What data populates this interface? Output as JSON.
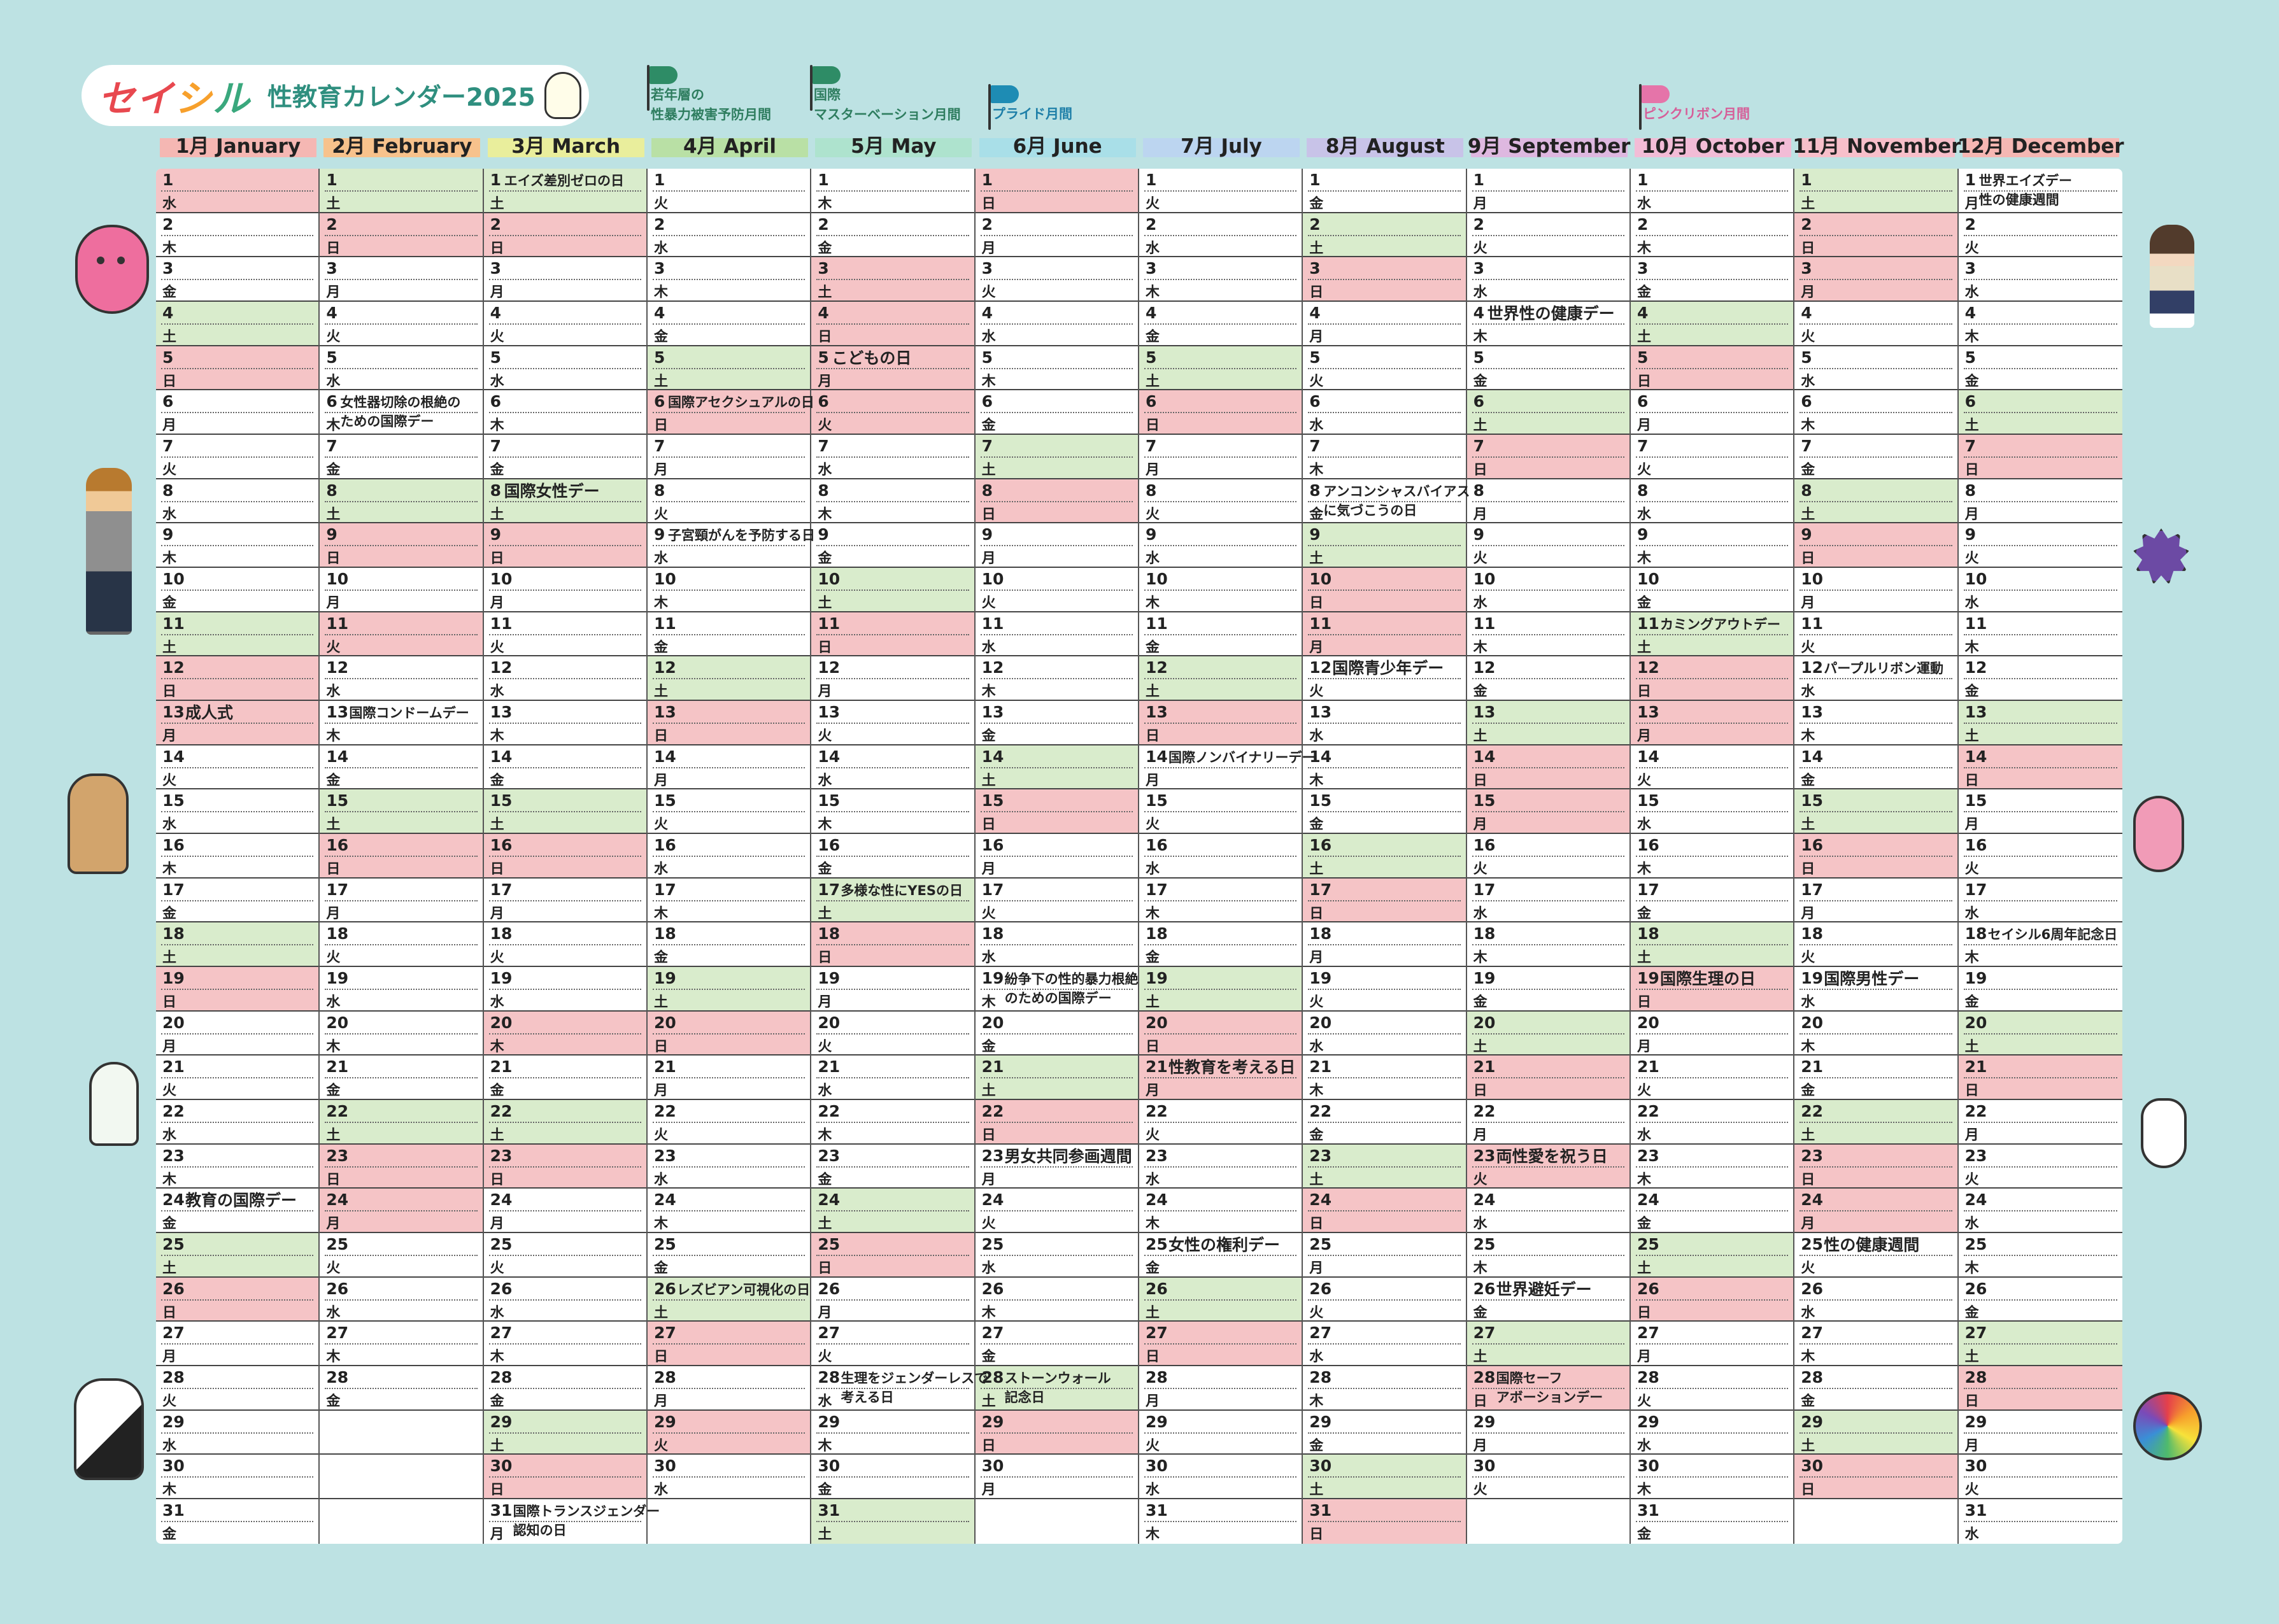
{
  "brand": {
    "logo_a": "セイ",
    "logo_b": "シ",
    "logo_c": "ル",
    "title": "性教育カレンダー2025"
  },
  "campaigns": [
    {
      "month": "4月",
      "label": "若年層の\n性暴力被害予防月間",
      "color": "#2e8c66"
    },
    {
      "month": "5月",
      "label": "国際\nマスターベーション月間",
      "color": "#2e8c66"
    },
    {
      "month": "6月",
      "label": "プライド月間",
      "color": "#1e8cb4"
    },
    {
      "month": "10月",
      "label": "ピンクリボン月間",
      "color": "#e574a9"
    }
  ],
  "months": [
    {
      "jp": "1月",
      "en": "January",
      "color": "#f5b7b3"
    },
    {
      "jp": "2月",
      "en": "February",
      "color": "#f7c28c"
    },
    {
      "jp": "3月",
      "en": "March",
      "color": "#e9ee9c"
    },
    {
      "jp": "4月",
      "en": "April",
      "color": "#b9e0a5"
    },
    {
      "jp": "5月",
      "en": "May",
      "color": "#aee3ce"
    },
    {
      "jp": "6月",
      "en": "June",
      "color": "#a9dfe8"
    },
    {
      "jp": "7月",
      "en": "July",
      "color": "#bcd5f0"
    },
    {
      "jp": "8月",
      "en": "August",
      "color": "#c8c3e8"
    },
    {
      "jp": "9月",
      "en": "September",
      "color": "#deb8e0"
    },
    {
      "jp": "10月",
      "en": "October",
      "color": "#f2bcd6"
    },
    {
      "jp": "11月",
      "en": "November",
      "color": "#f7bfca"
    },
    {
      "jp": "12月",
      "en": "December",
      "color": "#f5b7b3"
    }
  ],
  "weekdays": [
    "日",
    "月",
    "火",
    "水",
    "木",
    "金",
    "土"
  ],
  "holidays": {
    "1": [
      1,
      13
    ],
    "2": [
      11,
      23,
      24
    ],
    "3": [
      20
    ],
    "4": [
      29
    ],
    "5": [
      3,
      4,
      5,
      6
    ],
    "6": [],
    "7": [
      21
    ],
    "8": [
      11
    ],
    "9": [
      15,
      23
    ],
    "10": [
      13
    ],
    "11": [
      3,
      23,
      24
    ],
    "12": []
  },
  "events": {
    "1": {
      "13": "成人式",
      "24": "教育の国際デー"
    },
    "2": {
      "6": "女性器切除の根絶の\nための国際デー",
      "13": "国際コンドームデー"
    },
    "3": {
      "1": "エイズ差別ゼロの日",
      "8": "国際女性デー",
      "31": "国際トランスジェンダー\n認知の日"
    },
    "4": {
      "6": "国際アセクシュアルの日",
      "9": "子宮頸がんを予防する日",
      "26": "レズビアン可視化の日"
    },
    "5": {
      "5": "こどもの日",
      "17": "多様な性にYESの日",
      "28": "生理をジェンダーレスで\n考える日"
    },
    "6": {
      "19": "紛争下の性的暴力根絶\nのための国際デー",
      "23": "男女共同参画週間",
      "28": "ストーンウォール\n記念日"
    },
    "7": {
      "14": "国際ノンバイナリーデー",
      "21": "性教育を考える日",
      "25": "女性の権利デー"
    },
    "8": {
      "8": "アンコンシャスバイアス\nに気づこうの日",
      "12": "国際青少年デー"
    },
    "9": {
      "4": "世界性の健康デー",
      "23": "両性愛を祝う日",
      "26": "世界避妊デー",
      "28": "国際セーフ\nアボーションデー"
    },
    "10": {
      "11": "カミングアウトデー",
      "19": "国際生理の日"
    },
    "11": {
      "12": "パープルリボン運動",
      "19": "国際男性デー",
      "25": "性の健康週間"
    },
    "12": {
      "1": "世界エイズデー\n性の健康週間",
      "18": "セイシル6周年記念日"
    }
  },
  "characters": [
    "heart-character",
    "girl-character",
    "boy-with-phone",
    "virus-character",
    "finger-character",
    "bean-character",
    "condom-character",
    "cat-character",
    "stork-character",
    "snail-character"
  ]
}
